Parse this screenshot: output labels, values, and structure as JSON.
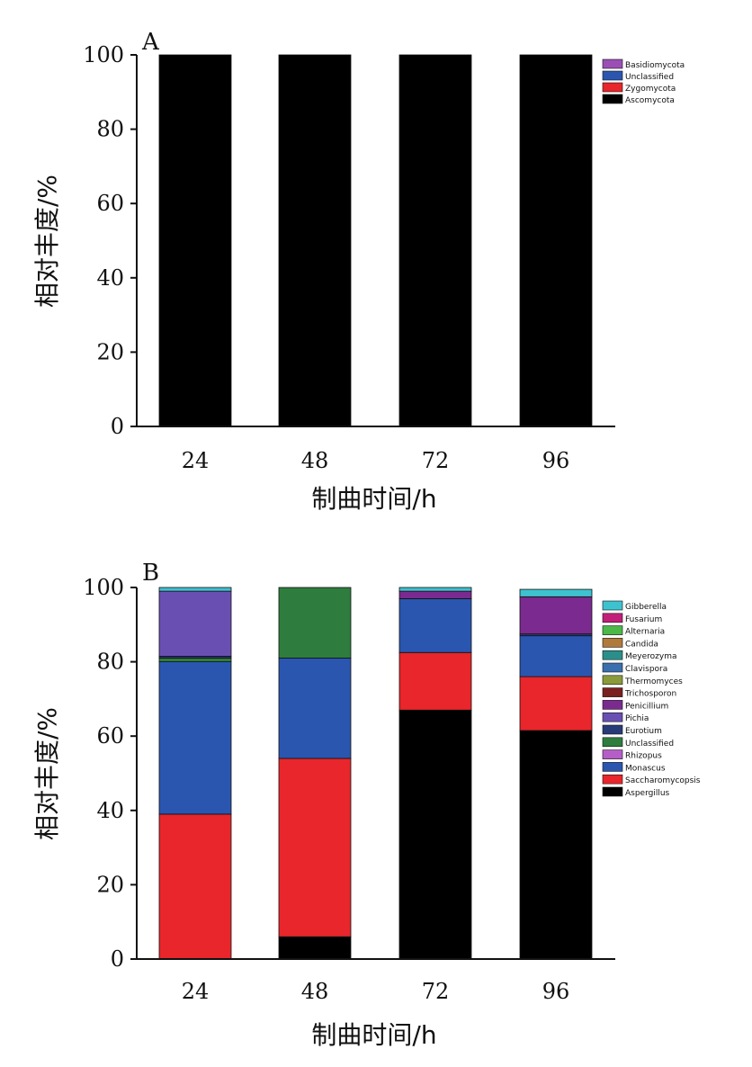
{
  "chart_data": [
    {
      "type": "bar",
      "stacked": true,
      "panel_label": "A",
      "xlabel": "制曲时间/h",
      "ylabel": "相对丰度/%",
      "ylim": [
        0,
        100
      ],
      "yticks": [
        "0",
        "20",
        "40",
        "60",
        "80",
        "100"
      ],
      "categories": [
        "24",
        "48",
        "72",
        "96"
      ],
      "legend_position": "right",
      "series": [
        {
          "name": "Ascomycota",
          "color": "#000000",
          "values": [
            100,
            100,
            100,
            100
          ]
        },
        {
          "name": "Zygomycota",
          "color": "#e8262b",
          "values": [
            0,
            0,
            0,
            0
          ]
        },
        {
          "name": "Unclassified",
          "color": "#2a56b0",
          "values": [
            0,
            0,
            0,
            0
          ]
        },
        {
          "name": "Basidiomycota",
          "color": "#9b4fb5",
          "values": [
            0,
            0,
            0,
            0
          ]
        }
      ]
    },
    {
      "type": "bar",
      "stacked": true,
      "panel_label": "B",
      "xlabel": "制曲时间/h",
      "ylabel": "相对丰度/%",
      "ylim": [
        0,
        100
      ],
      "yticks": [
        "0",
        "20",
        "40",
        "60",
        "80",
        "100"
      ],
      "categories": [
        "24",
        "48",
        "72",
        "96"
      ],
      "legend_position": "right",
      "series": [
        {
          "name": "Aspergillus",
          "color": "#000000",
          "values": [
            0,
            6,
            67,
            61.5
          ]
        },
        {
          "name": "Saccharomycopsis",
          "color": "#e8262b",
          "values": [
            39,
            48,
            15.5,
            14.5
          ]
        },
        {
          "name": "Monascus",
          "color": "#2a56b0",
          "values": [
            41,
            27,
            14.5,
            11
          ]
        },
        {
          "name": "Rhizopus",
          "color": "#b65ec8",
          "values": [
            0,
            0,
            0,
            0
          ]
        },
        {
          "name": "Unclassified",
          "color": "#2e7d3e",
          "values": [
            1,
            19,
            0,
            0
          ]
        },
        {
          "name": "Eurotium",
          "color": "#283a78",
          "values": [
            0.5,
            0,
            0,
            0.5
          ]
        },
        {
          "name": "Pichia",
          "color": "#6a4fb3",
          "values": [
            17.5,
            0,
            0,
            0
          ]
        },
        {
          "name": "Penicillium",
          "color": "#7b2a8f",
          "values": [
            0,
            0,
            2,
            10
          ]
        },
        {
          "name": "Trichosporon",
          "color": "#7a1f1f",
          "values": [
            0,
            0,
            0,
            0
          ]
        },
        {
          "name": "Thermomyces",
          "color": "#8a9a3a",
          "values": [
            0,
            0,
            0,
            0
          ]
        },
        {
          "name": "Clavispora",
          "color": "#3b6fae",
          "values": [
            0,
            0,
            0,
            0
          ]
        },
        {
          "name": "Meyerozyma",
          "color": "#2a8f8a",
          "values": [
            0,
            0,
            0,
            0
          ]
        },
        {
          "name": "Candida",
          "color": "#b07a3a",
          "values": [
            0,
            0,
            0,
            0
          ]
        },
        {
          "name": "Alternaria",
          "color": "#4cb848",
          "values": [
            0,
            0,
            0,
            0
          ]
        },
        {
          "name": "Fusarium",
          "color": "#c21f7a",
          "values": [
            0,
            0,
            0,
            0
          ]
        },
        {
          "name": "Gibberella",
          "color": "#3ec2cf",
          "values": [
            1,
            0,
            1,
            2
          ]
        }
      ]
    }
  ]
}
